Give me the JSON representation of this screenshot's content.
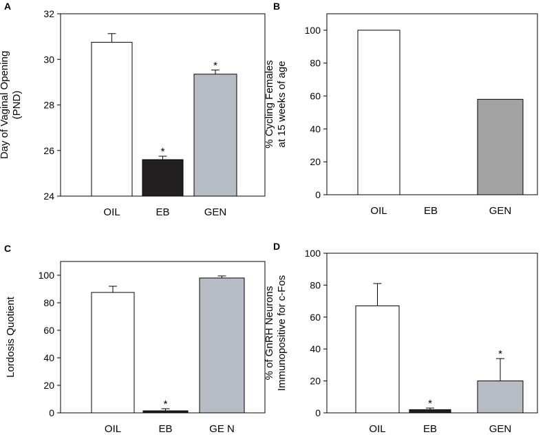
{
  "figure": "4-panel bar chart figure",
  "chart_data": [
    {
      "panel": "A",
      "type": "bar",
      "ylabel_lines": [
        "Day of Vaginal Opening",
        "(PND)"
      ],
      "categories": [
        "OIL",
        "EB",
        "GEN"
      ],
      "values": [
        30.75,
        25.6,
        29.35
      ],
      "errors": [
        0.38,
        0.15,
        0.18
      ],
      "significance": [
        "",
        "*",
        "*"
      ],
      "bar_colors": [
        "#ffffff",
        "#231f20",
        "#b8bcc4"
      ],
      "ylim": [
        24,
        32
      ],
      "yticks": [
        24,
        26,
        28,
        30,
        32
      ],
      "ytick_labels": [
        "24",
        "26",
        "28",
        "30",
        "32"
      ]
    },
    {
      "panel": "B",
      "type": "bar",
      "ylabel_lines": [
        "% Cycling Females",
        "at 15 weeks of age"
      ],
      "categories": [
        "OIL",
        "EB",
        "GEN"
      ],
      "values": [
        100,
        0,
        58
      ],
      "errors": [
        0,
        0,
        0
      ],
      "significance": [
        "",
        "",
        ""
      ],
      "bar_colors": [
        "#ffffff",
        "#ffffff",
        "#a3a3a3"
      ],
      "ylim": [
        0,
        110
      ],
      "yticks": [
        0,
        20,
        40,
        60,
        80,
        100
      ],
      "ytick_labels": [
        "0",
        "20",
        "40",
        "60",
        "80",
        "100"
      ]
    },
    {
      "panel": "C",
      "type": "bar",
      "ylabel_lines": [
        "Lordosis Quotient"
      ],
      "categories": [
        "OIL",
        "EB",
        "GE N"
      ],
      "values": [
        87.5,
        1.5,
        98
      ],
      "errors": [
        4.5,
        1.5,
        1.5
      ],
      "significance": [
        "",
        "*",
        ""
      ],
      "bar_colors": [
        "#ffffff",
        "#231f20",
        "#b8bcc4"
      ],
      "ylim": [
        0,
        110
      ],
      "yticks": [
        0,
        20,
        40,
        60,
        80,
        100
      ],
      "ytick_labels": [
        "0",
        "20",
        "40",
        "60",
        "80",
        "100"
      ]
    },
    {
      "panel": "D",
      "type": "bar",
      "ylabel_lines": [
        "% of GnRH Neurons",
        "Immunopositive for c-Fos"
      ],
      "categories": [
        "OIL",
        "EB",
        "GEN"
      ],
      "values": [
        67,
        2,
        20
      ],
      "errors": [
        14,
        1,
        14
      ],
      "significance": [
        "",
        "*",
        "*"
      ],
      "bar_colors": [
        "#ffffff",
        "#231f20",
        "#b8bcc4"
      ],
      "ylim": [
        0,
        100
      ],
      "yticks": [
        0,
        20,
        40,
        60,
        80,
        100
      ],
      "ytick_labels": [
        "0",
        "20",
        "40",
        "60",
        "80",
        "100"
      ]
    }
  ]
}
